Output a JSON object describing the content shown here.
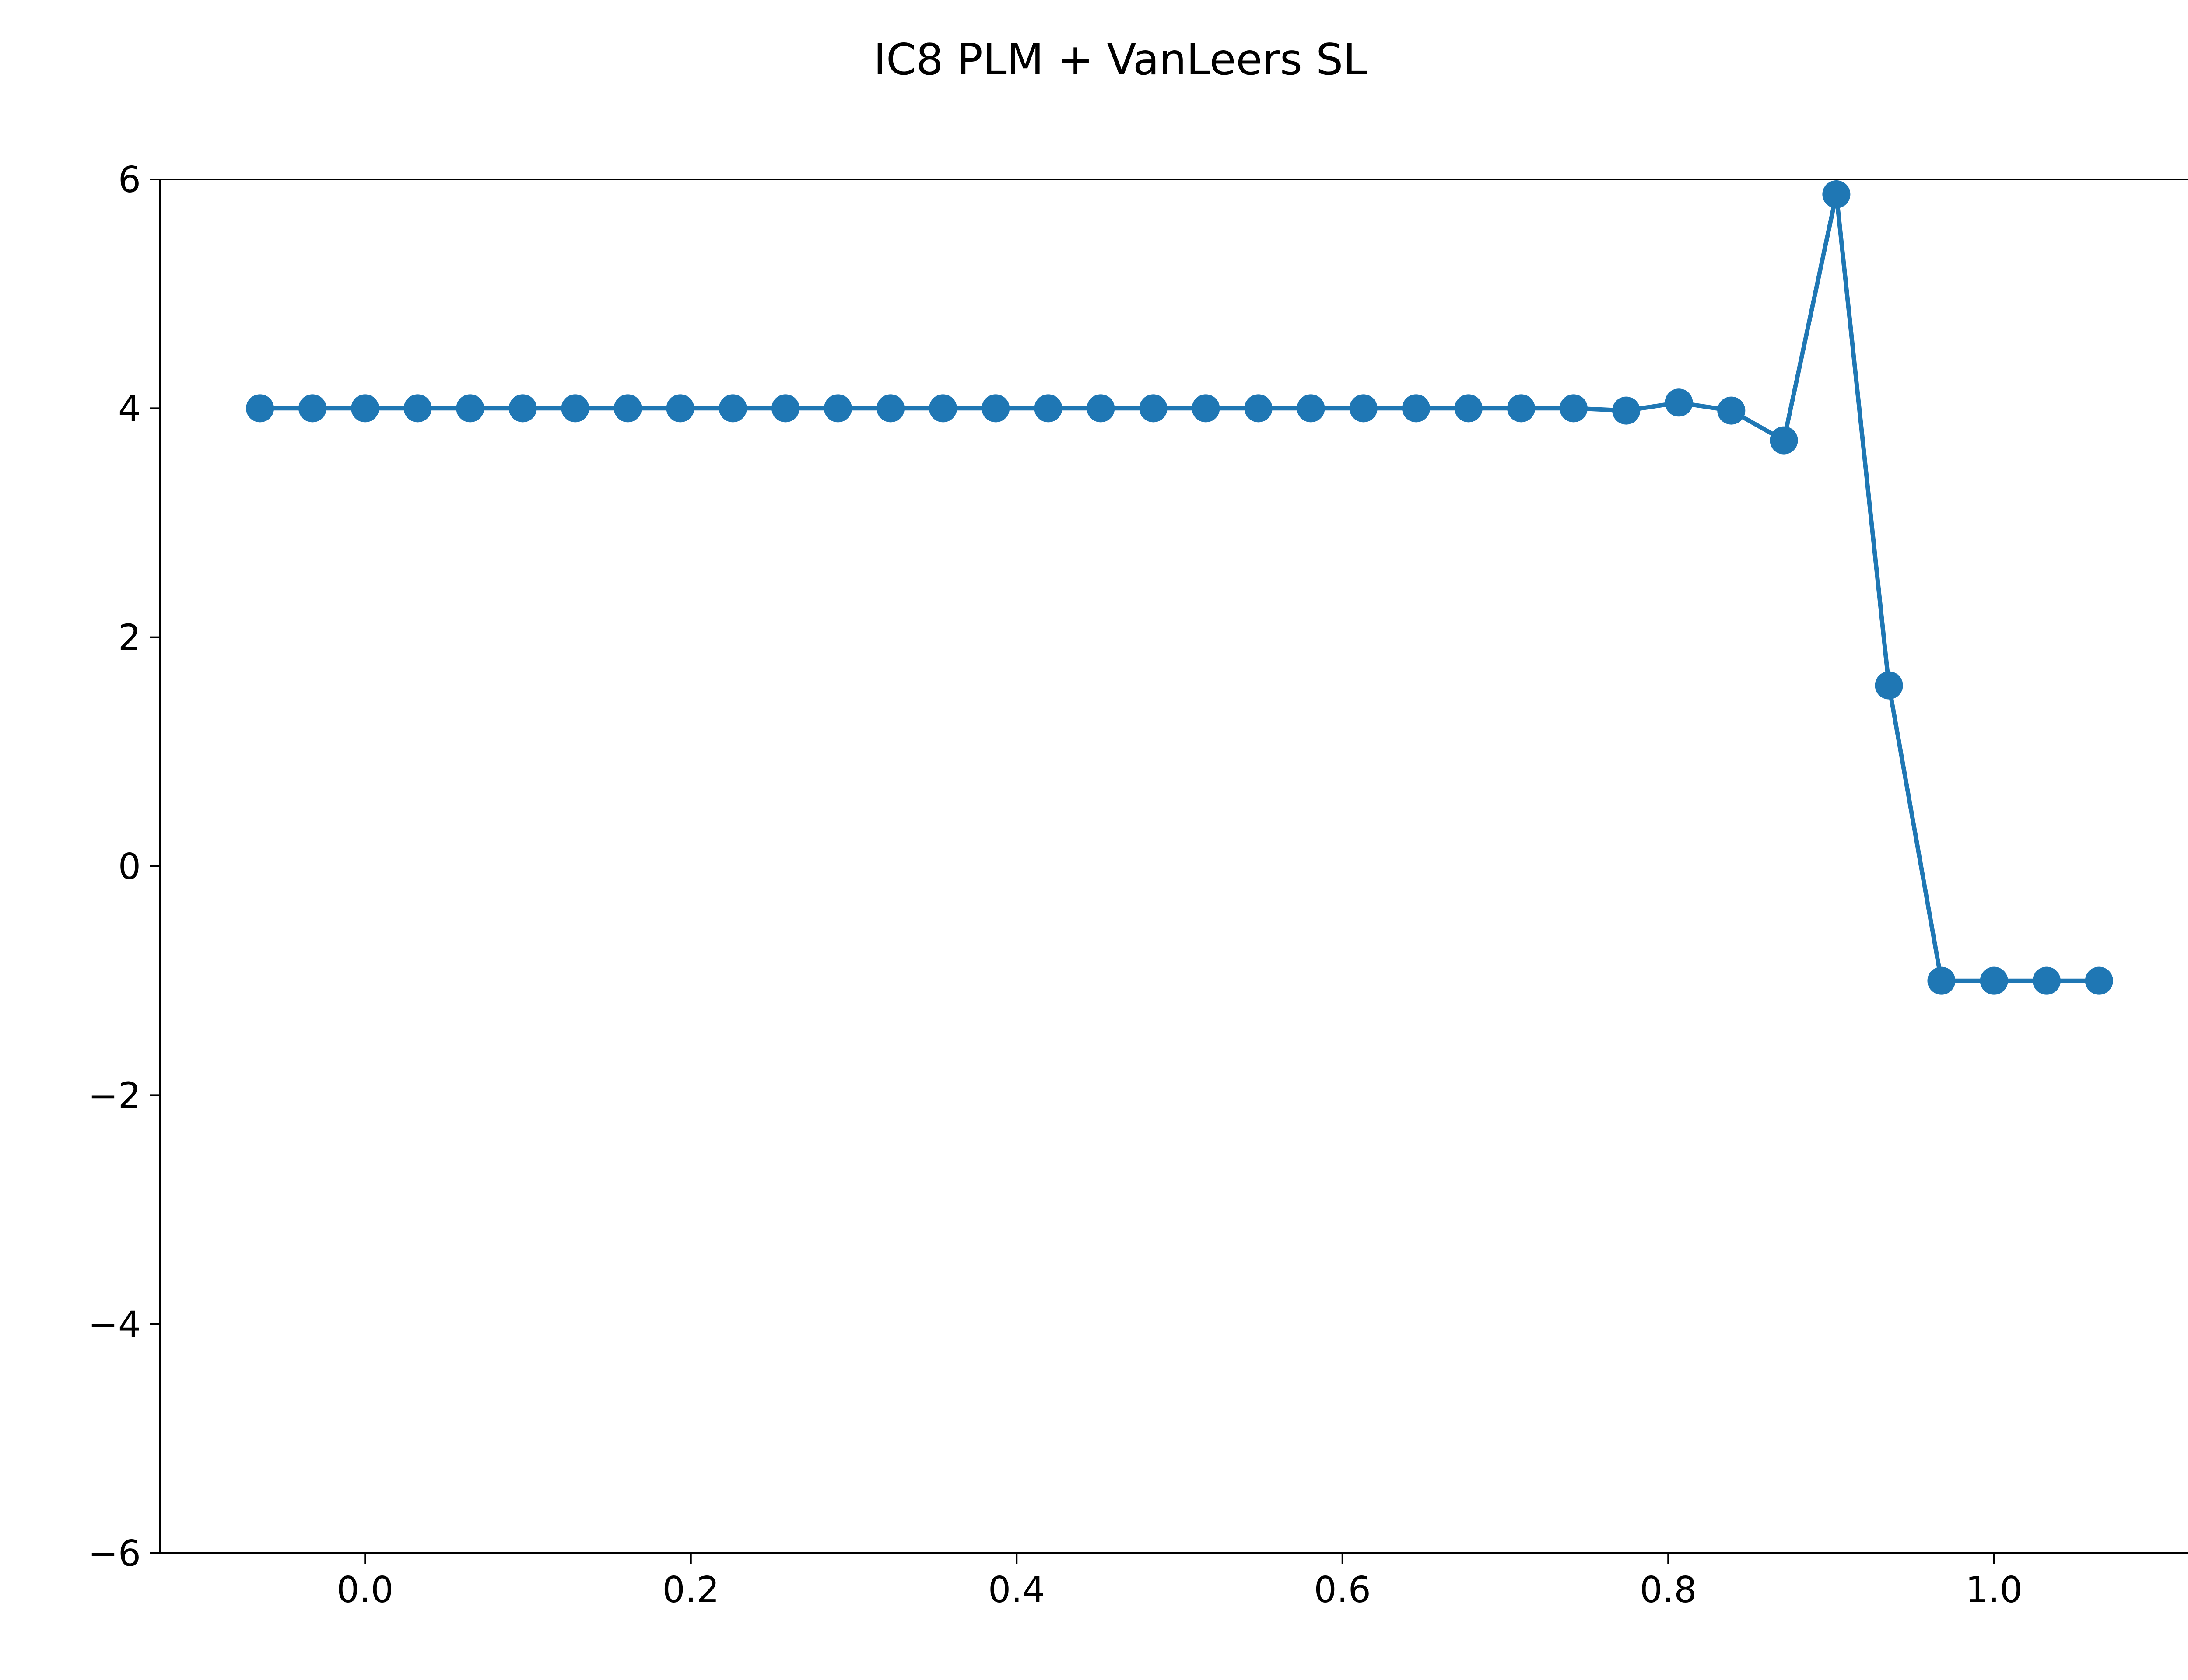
{
  "chart_data": {
    "type": "line",
    "title": "IC8 PLM + VanLeers SL",
    "xlabel": "",
    "ylabel": "",
    "xlim": [
      -0.1258,
      1.1258
    ],
    "ylim": [
      -6,
      6
    ],
    "x_ticks": [
      {
        "value": 0.0,
        "label": "0.0"
      },
      {
        "value": 0.2,
        "label": "0.2"
      },
      {
        "value": 0.4,
        "label": "0.4"
      },
      {
        "value": 0.6,
        "label": "0.6"
      },
      {
        "value": 0.8,
        "label": "0.8"
      },
      {
        "value": 1.0,
        "label": "1.0"
      }
    ],
    "y_ticks": [
      {
        "value": -6,
        "label": "−6"
      },
      {
        "value": -4,
        "label": "−4"
      },
      {
        "value": -2,
        "label": "−2"
      },
      {
        "value": 0,
        "label": "0"
      },
      {
        "value": 2,
        "label": "2"
      },
      {
        "value": 4,
        "label": "4"
      },
      {
        "value": 6,
        "label": "6"
      }
    ],
    "grid": false,
    "legend": "none",
    "color": "#1f77b4",
    "series": [
      {
        "x": [
          -0.0645,
          -0.0323,
          0.0,
          0.0323,
          0.0645,
          0.0968,
          0.129,
          0.1613,
          0.1935,
          0.2258,
          0.2581,
          0.2903,
          0.3226,
          0.3548,
          0.3871,
          0.4194,
          0.4516,
          0.4839,
          0.5161,
          0.5484,
          0.5806,
          0.6129,
          0.6452,
          0.6774,
          0.7097,
          0.7419,
          0.7742,
          0.8065,
          0.8387,
          0.871,
          0.9032,
          0.9355,
          0.9677,
          1.0,
          1.0323,
          1.0645
        ],
        "y": [
          4.0,
          4.0,
          4.0,
          4.0,
          4.0,
          4.0,
          4.0,
          4.0,
          4.0,
          4.0,
          4.0,
          4.0,
          4.0,
          4.0,
          4.0,
          4.0,
          4.0,
          4.0,
          4.0,
          4.0,
          4.0,
          4.0,
          4.0,
          4.0,
          4.0,
          4.0,
          3.98,
          4.05,
          3.98,
          3.72,
          5.87,
          1.58,
          -1.0,
          -1.0,
          -1.0,
          -1.0
        ]
      }
    ]
  }
}
